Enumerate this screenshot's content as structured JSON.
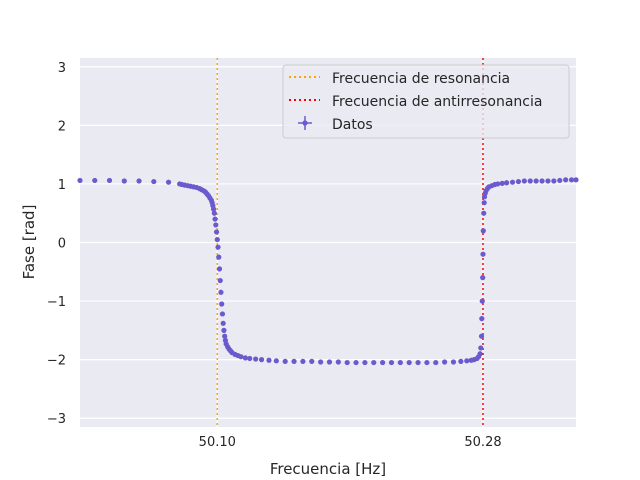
{
  "chart_data": {
    "type": "scatter",
    "xlabel": "Frecuencia [Hz]",
    "ylabel": "Fase [rad]",
    "xlim": [
      50.007,
      50.343
    ],
    "ylim": [
      -3.15,
      3.15
    ],
    "xticks": [
      50.1,
      50.28
    ],
    "xtick_labels": [
      "50.10",
      "50.28"
    ],
    "yticks": [
      -3,
      -2,
      -1,
      0,
      1,
      2,
      3
    ],
    "ytick_labels": [
      "−3",
      "−2",
      "−1",
      "0",
      "1",
      "2",
      "3"
    ],
    "grid": true,
    "legend_position": "upper right",
    "vlines": [
      {
        "name": "Frecuencia de resonancia",
        "x": 50.1,
        "color": "#ffa500",
        "style": "dotted"
      },
      {
        "name": "Frecuencia de antirresonancia",
        "x": 50.28,
        "color": "#ff0000",
        "style": "dotted"
      }
    ],
    "series": [
      {
        "name": "Datos",
        "color": "#6a5acd",
        "points": [
          [
            50.007,
            1.06
          ],
          [
            50.017,
            1.06
          ],
          [
            50.027,
            1.06
          ],
          [
            50.037,
            1.05
          ],
          [
            50.047,
            1.05
          ],
          [
            50.057,
            1.04
          ],
          [
            50.067,
            1.03
          ],
          [
            50.0745,
            1.0
          ],
          [
            50.076,
            0.99
          ],
          [
            50.078,
            0.98
          ],
          [
            50.08,
            0.97
          ],
          [
            50.082,
            0.96
          ],
          [
            50.084,
            0.95
          ],
          [
            50.086,
            0.94
          ],
          [
            50.088,
            0.92
          ],
          [
            50.0895,
            0.9
          ],
          [
            50.091,
            0.88
          ],
          [
            50.092,
            0.86
          ],
          [
            50.093,
            0.83
          ],
          [
            50.094,
            0.8
          ],
          [
            50.095,
            0.76
          ],
          [
            50.096,
            0.72
          ],
          [
            50.0965,
            0.68
          ],
          [
            50.097,
            0.63
          ],
          [
            50.0975,
            0.57
          ],
          [
            50.098,
            0.5
          ],
          [
            50.0985,
            0.4
          ],
          [
            50.099,
            0.3
          ],
          [
            50.0995,
            0.18
          ],
          [
            50.1,
            0.05
          ],
          [
            50.1005,
            -0.08
          ],
          [
            50.101,
            -0.25
          ],
          [
            50.1015,
            -0.45
          ],
          [
            50.102,
            -0.65
          ],
          [
            50.1025,
            -0.85
          ],
          [
            50.103,
            -1.05
          ],
          [
            50.1035,
            -1.22
          ],
          [
            50.104,
            -1.38
          ],
          [
            50.1045,
            -1.5
          ],
          [
            50.105,
            -1.6
          ],
          [
            50.1055,
            -1.67
          ],
          [
            50.106,
            -1.73
          ],
          [
            50.107,
            -1.78
          ],
          [
            50.108,
            -1.82
          ],
          [
            50.109,
            -1.85
          ],
          [
            50.11,
            -1.88
          ],
          [
            50.112,
            -1.91
          ],
          [
            50.114,
            -1.93
          ],
          [
            50.116,
            -1.95
          ],
          [
            50.119,
            -1.97
          ],
          [
            50.122,
            -1.98
          ],
          [
            50.126,
            -1.99
          ],
          [
            50.13,
            -2.0
          ],
          [
            50.135,
            -2.01
          ],
          [
            50.14,
            -2.02
          ],
          [
            50.146,
            -2.03
          ],
          [
            50.152,
            -2.03
          ],
          [
            50.158,
            -2.03
          ],
          [
            50.164,
            -2.03
          ],
          [
            50.17,
            -2.04
          ],
          [
            50.176,
            -2.04
          ],
          [
            50.182,
            -2.04
          ],
          [
            50.188,
            -2.05
          ],
          [
            50.194,
            -2.05
          ],
          [
            50.2,
            -2.05
          ],
          [
            50.206,
            -2.05
          ],
          [
            50.212,
            -2.05
          ],
          [
            50.218,
            -2.05
          ],
          [
            50.224,
            -2.05
          ],
          [
            50.23,
            -2.05
          ],
          [
            50.236,
            -2.05
          ],
          [
            50.242,
            -2.05
          ],
          [
            50.248,
            -2.05
          ],
          [
            50.254,
            -2.04
          ],
          [
            50.26,
            -2.04
          ],
          [
            50.265,
            -2.03
          ],
          [
            50.269,
            -2.02
          ],
          [
            50.272,
            -2.01
          ],
          [
            50.274,
            -2.0
          ],
          [
            50.276,
            -1.98
          ],
          [
            50.277,
            -1.95
          ],
          [
            50.278,
            -1.9
          ],
          [
            50.2785,
            -1.8
          ],
          [
            50.279,
            -1.6
          ],
          [
            50.2792,
            -1.3
          ],
          [
            50.2795,
            -1.0
          ],
          [
            50.2798,
            -0.6
          ],
          [
            50.28,
            -0.2
          ],
          [
            50.2802,
            0.2
          ],
          [
            50.2805,
            0.5
          ],
          [
            50.2808,
            0.68
          ],
          [
            50.281,
            0.78
          ],
          [
            50.2815,
            0.84
          ],
          [
            50.282,
            0.88
          ],
          [
            50.283,
            0.92
          ],
          [
            50.284,
            0.95
          ],
          [
            50.286,
            0.97
          ],
          [
            50.288,
            0.99
          ],
          [
            50.29,
            1.0
          ],
          [
            50.293,
            1.01
          ],
          [
            50.296,
            1.02
          ],
          [
            50.3,
            1.03
          ],
          [
            50.304,
            1.04
          ],
          [
            50.308,
            1.05
          ],
          [
            50.312,
            1.05
          ],
          [
            50.316,
            1.05
          ],
          [
            50.32,
            1.05
          ],
          [
            50.324,
            1.05
          ],
          [
            50.328,
            1.05
          ],
          [
            50.332,
            1.06
          ],
          [
            50.336,
            1.07
          ],
          [
            50.34,
            1.07
          ],
          [
            50.343,
            1.07
          ]
        ]
      }
    ]
  }
}
